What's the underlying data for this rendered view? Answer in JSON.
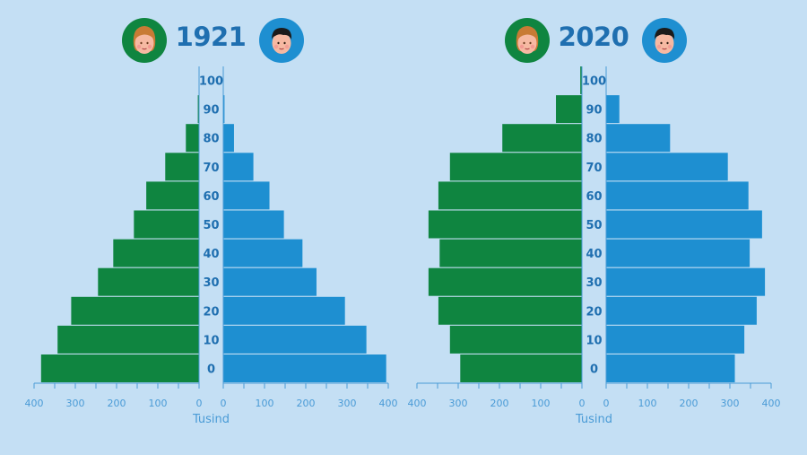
{
  "colors": {
    "background": "#c4dff4",
    "female": "#0f8540",
    "male": "#1e8fd1",
    "axis": "#4a9bd6",
    "title": "#1f6fb0"
  },
  "icons": [
    "female-face-icon",
    "male-face-icon"
  ],
  "chart_data": [
    {
      "type": "bar",
      "orientation": "horizontal-population-pyramid",
      "title": "1921",
      "xlabel": "Tusind",
      "ylabel": "",
      "categories": [
        "0",
        "10",
        "20",
        "30",
        "40",
        "50",
        "60",
        "70",
        "80",
        "90",
        "100"
      ],
      "series": [
        {
          "values": [
            383,
            343,
            310,
            245,
            208,
            158,
            128,
            82,
            32,
            3,
            1
          ]
        },
        {
          "values": [
            395,
            347,
            295,
            226,
            192,
            147,
            112,
            73,
            26,
            3,
            1
          ]
        }
      ],
      "xlim": [
        0,
        400
      ],
      "tick_labels": [
        "400",
        "300",
        "200",
        "100",
        "0"
      ],
      "grid": false
    },
    {
      "type": "bar",
      "orientation": "horizontal-population-pyramid",
      "title": "2020",
      "xlabel": "Tusind",
      "ylabel": "",
      "categories": [
        "0",
        "10",
        "20",
        "30",
        "40",
        "50",
        "60",
        "70",
        "80",
        "90",
        "100"
      ],
      "series": [
        {
          "values": [
            295,
            320,
            348,
            372,
            345,
            372,
            348,
            320,
            193,
            63,
            4
          ]
        },
        {
          "values": [
            312,
            335,
            365,
            385,
            348,
            378,
            345,
            295,
            155,
            32,
            1
          ]
        }
      ],
      "xlim": [
        0,
        400
      ],
      "tick_labels": [
        "400",
        "300",
        "200",
        "100",
        "0"
      ],
      "grid": false
    }
  ]
}
